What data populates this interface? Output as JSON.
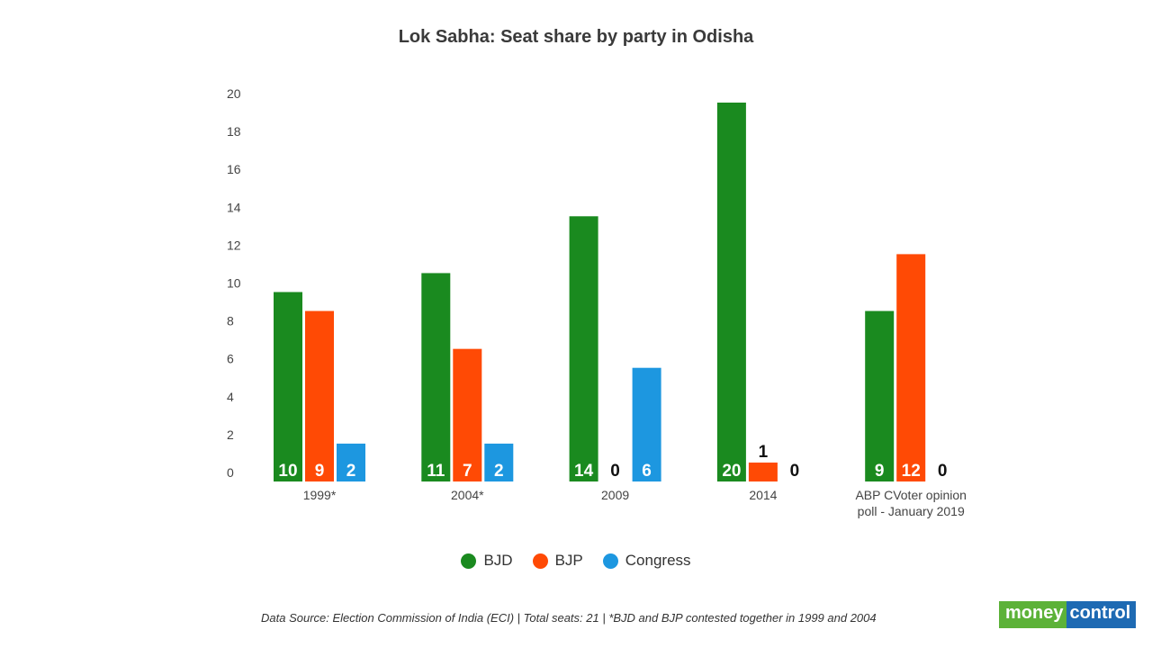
{
  "chart_data": {
    "type": "bar",
    "title": "Lok Sabha: Seat share by party in Odisha",
    "categories": [
      "1999*",
      "2004*",
      "2009",
      "2014",
      "ABP CVoter opinion poll - January 2019"
    ],
    "series": [
      {
        "name": "BJD",
        "color": "#1a8a1f",
        "values": [
          10,
          11,
          14,
          20,
          9
        ]
      },
      {
        "name": "BJP",
        "color": "#ff4a05",
        "values": [
          9,
          7,
          0,
          1,
          12
        ]
      },
      {
        "name": "Congress",
        "color": "#1d97e0",
        "values": [
          2,
          2,
          6,
          0,
          0
        ]
      }
    ],
    "ylim": [
      0,
      20
    ],
    "yticks": [
      0,
      2,
      4,
      6,
      8,
      10,
      12,
      14,
      16,
      18,
      20
    ],
    "grid": false,
    "legend": "bottom"
  },
  "footer": "Data Source: Election Commission of India (ECI) | Total seats: 21 | *BJD and BJP contested together in 1999 and 2004",
  "logo": {
    "part1": "money",
    "part2": "control"
  }
}
